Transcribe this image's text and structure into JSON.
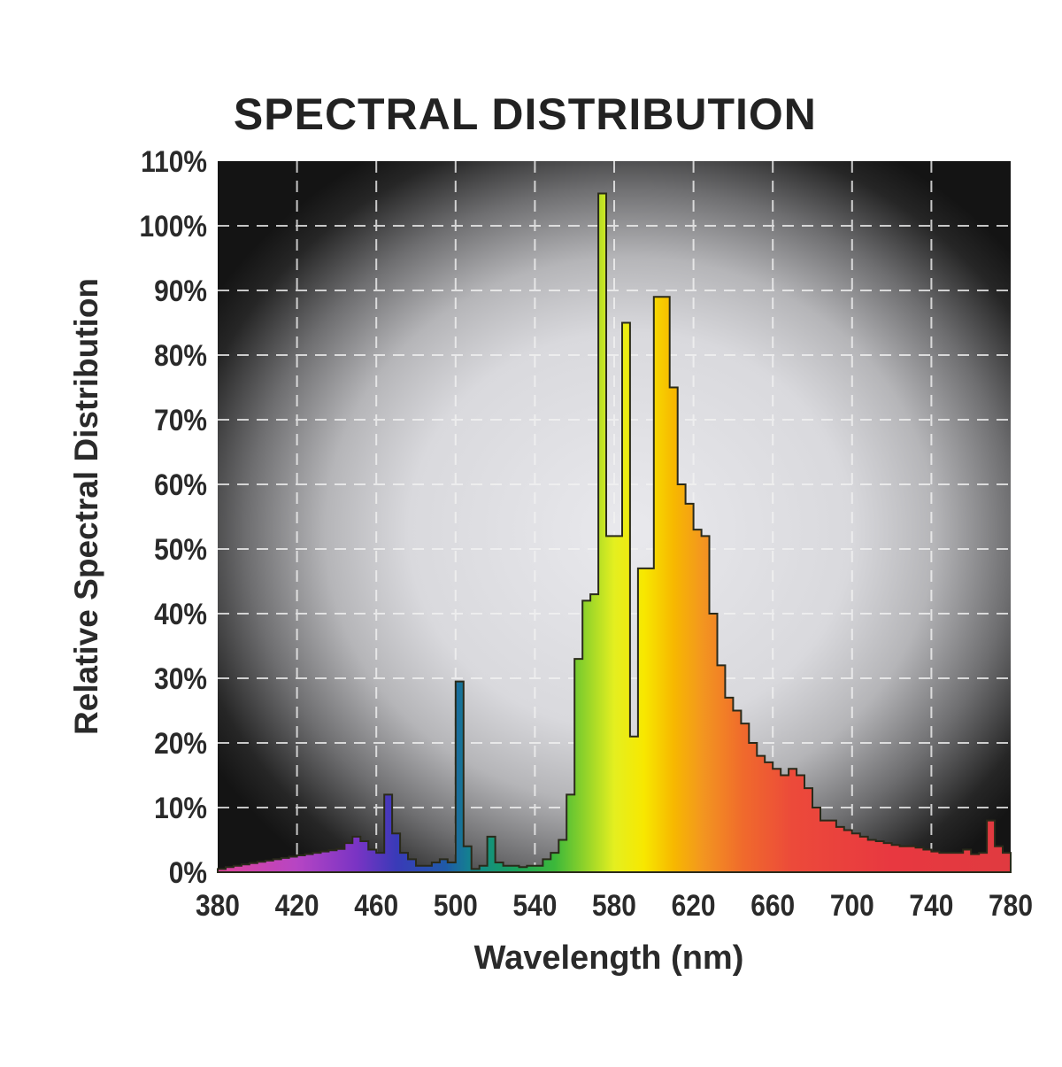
{
  "chart_data": {
    "type": "area",
    "title": "SPECTRAL DISTRIBUTION",
    "xlabel": "Wavelength (nm)",
    "ylabel": "Relative Spectral Distribution",
    "xlim": [
      380,
      780
    ],
    "ylim": [
      0,
      110
    ],
    "x_ticks": [
      380,
      420,
      460,
      500,
      540,
      580,
      620,
      660,
      700,
      740,
      780
    ],
    "x_tick_labels": [
      "380",
      "420",
      "460",
      "500",
      "540",
      "580",
      "620",
      "660",
      "700",
      "740",
      "780"
    ],
    "y_ticks": [
      0,
      10,
      20,
      30,
      40,
      50,
      60,
      70,
      80,
      90,
      100,
      110
    ],
    "y_tick_labels": [
      "0%",
      "10%",
      "20%",
      "30%",
      "40%",
      "50%",
      "60%",
      "70%",
      "80%",
      "90%",
      "100%",
      "110%"
    ],
    "grid": true,
    "x": [
      380,
      384,
      388,
      392,
      396,
      400,
      404,
      408,
      412,
      416,
      420,
      424,
      428,
      432,
      436,
      440,
      444,
      448,
      452,
      456,
      460,
      464,
      468,
      472,
      476,
      480,
      484,
      488,
      492,
      496,
      500,
      504,
      508,
      512,
      516,
      520,
      524,
      528,
      532,
      536,
      540,
      544,
      548,
      552,
      556,
      560,
      564,
      568,
      572,
      576,
      580,
      584,
      588,
      592,
      596,
      600,
      604,
      608,
      612,
      616,
      620,
      624,
      628,
      632,
      636,
      640,
      644,
      648,
      652,
      656,
      660,
      664,
      668,
      672,
      676,
      680,
      684,
      688,
      692,
      696,
      700,
      704,
      708,
      712,
      716,
      720,
      724,
      728,
      732,
      736,
      740,
      744,
      748,
      752,
      756,
      760,
      764,
      768,
      772,
      776
    ],
    "values": [
      0.5,
      0.8,
      1,
      1.2,
      1.4,
      1.6,
      1.8,
      2,
      2.2,
      2.4,
      2.6,
      2.8,
      3,
      3.2,
      3.4,
      3.6,
      4.5,
      5.5,
      4.8,
      3.5,
      3,
      12,
      6,
      3,
      2,
      1,
      1,
      1.5,
      2,
      1.5,
      29.5,
      4,
      0.5,
      1,
      5.5,
      1.5,
      1,
      1,
      0.8,
      1,
      1,
      2,
      3,
      5,
      12,
      33,
      42,
      43,
      105,
      52,
      52,
      85,
      21,
      47,
      47,
      89,
      89,
      75,
      60,
      57,
      53,
      52,
      40,
      32,
      27,
      25,
      23,
      20,
      18,
      17,
      16,
      15,
      16,
      15,
      13,
      10,
      8,
      8,
      7,
      6.5,
      6,
      5.5,
      5,
      4.8,
      4.5,
      4.2,
      4,
      4,
      3.8,
      3.5,
      3.2,
      3,
      3,
      3,
      3.5,
      2.8,
      3,
      8,
      4,
      3
    ]
  }
}
